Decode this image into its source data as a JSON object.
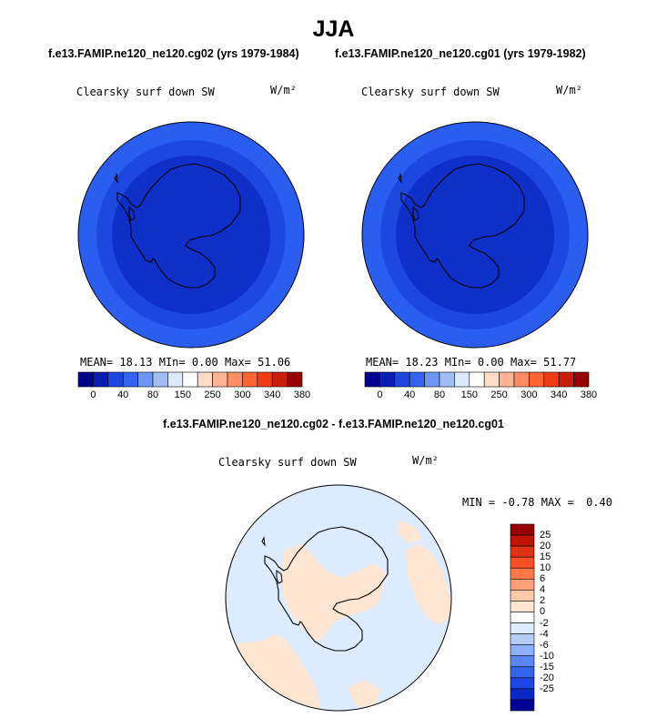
{
  "season": "JJA",
  "case1_title": "f.e13.FAMIP.ne120_ne120.cg02 (yrs 1979-1984)",
  "case2_title": "f.e13.FAMIP.ne120_ne120.cg01 (yrs 1979-1982)",
  "diff_title": "f.e13.FAMIP.ne120_ne120.cg02 - f.e13.FAMIP.ne120_ne120.cg01",
  "variable": "Clearsky surf down SW",
  "units": "W/m²",
  "panel1": {
    "mean_label": "MEAN=",
    "mean": "18.13",
    "min_label": "MIn=",
    "min": "0.00",
    "max_label": "Max=",
    "max": "51.06"
  },
  "panel2": {
    "mean_label": "MEAN=",
    "mean": "18.23",
    "min_label": "MIn=",
    "min": "0.00",
    "max_label": "Max=",
    "max": "51.77"
  },
  "diff_stats": {
    "min_label": "MIN =",
    "min": "-0.78",
    "max_label": "MAX =",
    "max": "0.40"
  },
  "field_colorbar": {
    "colors": [
      "#00008c",
      "#0a1eb4",
      "#1e46dc",
      "#3264f0",
      "#6e96f5",
      "#a0bef5",
      "#dceaff",
      "#ffffff",
      "#ffdcc8",
      "#ffb496",
      "#ff8c64",
      "#ff6432",
      "#f03c14",
      "#c81e0a",
      "#960000"
    ],
    "tick_labels": [
      "0",
      "40",
      "80",
      "150",
      "250",
      "300",
      "340",
      "380"
    ]
  },
  "diff_colorbar": {
    "colors_top_to_bottom": [
      "#960000",
      "#be1400",
      "#e03214",
      "#fa5028",
      "#ff7846",
      "#ffa07a",
      "#ffc8aa",
      "#ffe6d2",
      "#ffffff",
      "#dcebff",
      "#b4cdfa",
      "#8cafff",
      "#5a87f5",
      "#3264f0",
      "#1e46e6",
      "#0a28c8",
      "#000096"
    ],
    "tick_labels_top_to_bottom": [
      "25",
      "20",
      "15",
      "10",
      "6",
      "4",
      "2",
      "0",
      "-2",
      "-4",
      "-6",
      "-10",
      "-15",
      "-20",
      "-25"
    ]
  },
  "map_colors": {
    "field_outer": "#2a5ef0",
    "field_middle": "#1d48e0",
    "field_inner": "#0f30c8",
    "diff_negative": "#dcebff",
    "diff_positive": "#ffe6d2"
  }
}
